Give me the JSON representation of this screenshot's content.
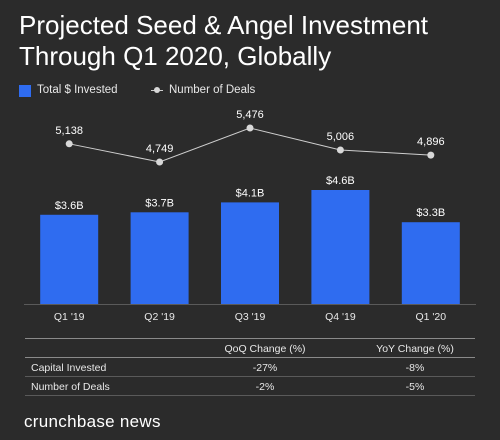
{
  "title": "Projected Seed & Angel Investment Through Q1 2020, Globally",
  "legend": {
    "bars_label": "Total $ Invested",
    "line_label": "Number of Deals"
  },
  "colors": {
    "bar": "#2f6cf0",
    "line": "#cfcfcf",
    "background": "#2b2b2b"
  },
  "chart_data": {
    "type": "bar",
    "categories": [
      "Q1 '19",
      "Q2 '19",
      "Q3 '19",
      "Q4 '19",
      "Q1 '20"
    ],
    "series": [
      {
        "name": "Total $ Invested",
        "type": "bar",
        "values": [
          3.6,
          3.7,
          4.1,
          4.6,
          3.3
        ],
        "labels": [
          "$3.6B",
          "$3.7B",
          "$4.1B",
          "$4.6B",
          "$3.3B"
        ]
      },
      {
        "name": "Number of Deals",
        "type": "line",
        "values": [
          5138,
          4749,
          5476,
          5006,
          4896
        ],
        "labels": [
          "5,138",
          "4,749",
          "5,476",
          "5,006",
          "4,896"
        ]
      }
    ],
    "grid": false,
    "legend_position": "top-left"
  },
  "table": {
    "headers": [
      "",
      "QoQ Change (%)",
      "YoY Change (%)"
    ],
    "rows": [
      [
        "Capital Invested",
        "-27%",
        "-8%"
      ],
      [
        "Number of Deals",
        "-2%",
        "-5%"
      ]
    ]
  },
  "brand": "crunchbase news"
}
